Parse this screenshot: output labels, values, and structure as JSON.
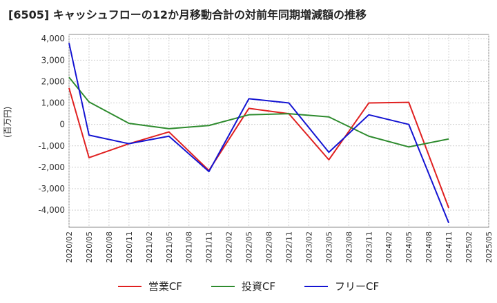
{
  "title": "[6505]  キャッシュフローの12か月移動合計の対前年同期増減額の推移",
  "chart_data": {
    "type": "line",
    "ylabel": "(百万円)",
    "x": [
      "2020/02",
      "2020/05",
      "2020/08",
      "2020/11",
      "2021/02",
      "2021/05",
      "2021/08",
      "2021/11",
      "2022/02",
      "2022/05",
      "2022/08",
      "2022/11",
      "2023/02",
      "2023/05",
      "2023/08",
      "2023/11",
      "2024/02",
      "2024/05",
      "2024/08",
      "2024/11",
      "2025/02",
      "2025/05"
    ],
    "ylim": [
      -4800,
      4200
    ],
    "yticks": [
      4000,
      3000,
      2000,
      1000,
      0,
      -1000,
      -2000,
      -3000,
      -4000
    ],
    "ytick_labels": [
      "4,000",
      "3,000",
      "2,000",
      "1,000",
      "0",
      "-1,000",
      "-2,000",
      "-3,000",
      "-4,000"
    ],
    "grid": true,
    "legend_position": "bottom",
    "series": [
      {
        "name": "営業CF",
        "color": "#e02020",
        "values": [
          1700,
          -1550,
          null,
          -900,
          null,
          -350,
          null,
          -2150,
          null,
          750,
          null,
          500,
          null,
          -1650,
          null,
          1000,
          null,
          1030,
          null,
          -3900,
          null,
          null
        ]
      },
      {
        "name": "投資CF",
        "color": "#2e8b2e",
        "values": [
          2200,
          1050,
          null,
          50,
          null,
          -200,
          null,
          -50,
          null,
          450,
          null,
          500,
          null,
          350,
          null,
          -550,
          null,
          -1050,
          null,
          -680,
          null,
          null
        ]
      },
      {
        "name": "フリーCF",
        "color": "#1414d2",
        "values": [
          3800,
          -500,
          null,
          -900,
          null,
          -550,
          null,
          -2200,
          null,
          1200,
          null,
          1000,
          null,
          -1300,
          null,
          450,
          null,
          0,
          null,
          -4600,
          null,
          null
        ]
      }
    ]
  }
}
